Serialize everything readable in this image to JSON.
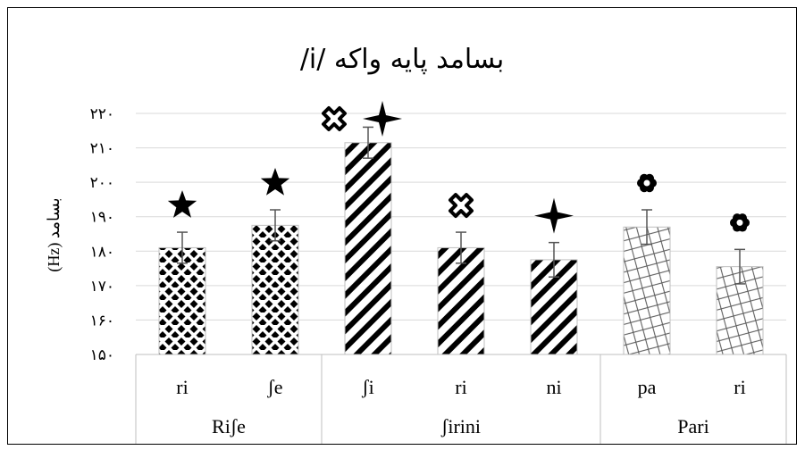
{
  "chart_data": {
    "type": "bar",
    "title": "بسامد پایه واکه /i/",
    "ylabel": "بسامد (Hz)",
    "ylim": [
      150,
      220
    ],
    "yticks": [
      150,
      160,
      170,
      180,
      190,
      200,
      210,
      220
    ],
    "ytick_labels": [
      "۱۵۰",
      "۱۶۰",
      "۱۷۰",
      "۱۸۰",
      "۱۹۰",
      "۲۰۰",
      "۲۱۰",
      "۲۲۰"
    ],
    "grid": true,
    "categories": [
      "ri",
      "ʃe",
      "ʃi",
      "ri",
      "ni",
      "pa",
      "ri"
    ],
    "groups": [
      {
        "label": "Riʃe",
        "members": [
          0,
          1
        ]
      },
      {
        "label": "ʃirini",
        "members": [
          2,
          3,
          4
        ]
      },
      {
        "label": "Pari",
        "members": [
          5,
          6
        ]
      }
    ],
    "values": [
      181,
      187.5,
      211.5,
      181,
      177.5,
      187,
      175.5
    ],
    "error": [
      4.5,
      4.5,
      4.5,
      4.5,
      5,
      5,
      5
    ],
    "patterns": [
      "diamond-dots",
      "diamond-dots",
      "diagonal-bold",
      "diagonal-bold",
      "diagonal-bold",
      "diagonal-cross",
      "diagonal-cross"
    ],
    "markers": [
      [
        "star"
      ],
      [
        "star"
      ],
      [
        "cross-circle",
        "four-point-star"
      ],
      [
        "cross-circle"
      ],
      [
        "four-point-star"
      ],
      [
        "flower"
      ],
      [
        "flower"
      ]
    ],
    "colors": {
      "bar_fill": "#000000",
      "grid": "#d9d9d9",
      "error": "#555555"
    }
  }
}
